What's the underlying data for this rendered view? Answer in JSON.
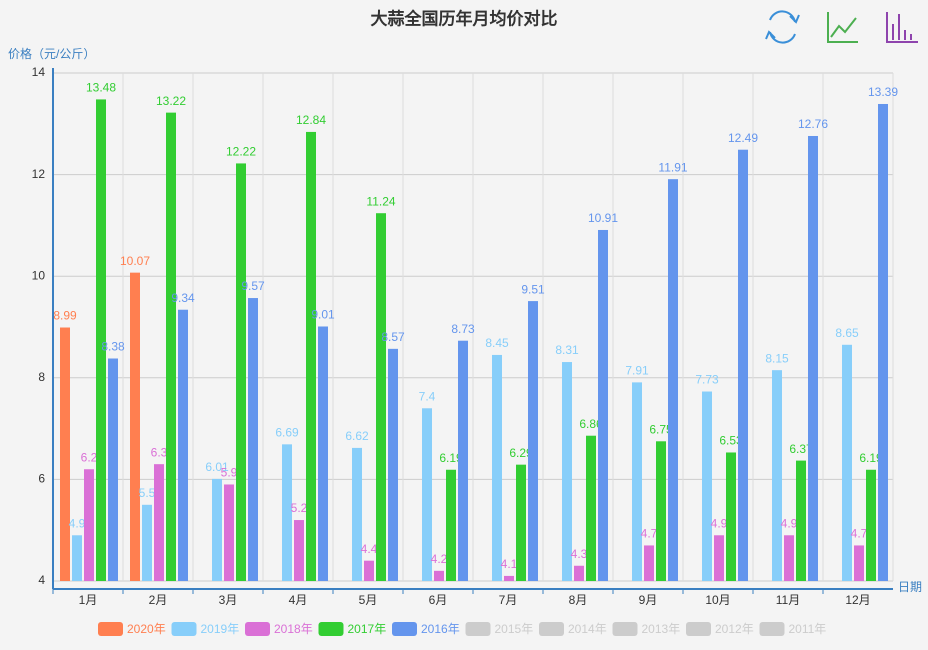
{
  "chart_data": {
    "type": "bar",
    "title": "大蒜全国历年月均价对比",
    "y_label": "价格（元/公斤）",
    "x_label": "日期",
    "categories": [
      "1月",
      "2月",
      "3月",
      "4月",
      "5月",
      "6月",
      "7月",
      "8月",
      "9月",
      "10月",
      "11月",
      "12月"
    ],
    "ylim": [
      4,
      14
    ],
    "yticks": [
      4,
      6,
      8,
      10,
      12,
      14
    ],
    "grid": true,
    "legend": "bottom",
    "series": [
      {
        "name": "2020年",
        "color": "#ff7f50",
        "values": [
          8.99,
          10.07,
          null,
          null,
          null,
          null,
          null,
          null,
          null,
          null,
          null,
          null
        ]
      },
      {
        "name": "2019年",
        "color": "#87cefa",
        "values": [
          4.9,
          5.5,
          6.01,
          6.69,
          6.62,
          7.4,
          8.45,
          8.31,
          7.91,
          7.73,
          8.15,
          8.65
        ]
      },
      {
        "name": "2018年",
        "color": "#da70d6",
        "values": [
          6.2,
          6.3,
          5.9,
          5.2,
          4.4,
          4.2,
          4.1,
          4.3,
          4.7,
          4.9,
          4.9,
          4.7
        ]
      },
      {
        "name": "2017年",
        "color": "#32cd32",
        "values": [
          13.48,
          13.22,
          12.22,
          12.84,
          11.24,
          6.19,
          6.29,
          6.86,
          6.75,
          6.53,
          6.37,
          6.19
        ]
      },
      {
        "name": "2016年",
        "color": "#6495ed",
        "values": [
          8.38,
          9.34,
          9.57,
          9.01,
          8.57,
          8.73,
          9.51,
          10.91,
          11.91,
          12.49,
          12.76,
          13.39
        ]
      },
      {
        "name": "2015年",
        "color": "#cccccc",
        "visible": false,
        "values": [
          null,
          null,
          null,
          null,
          null,
          null,
          null,
          null,
          null,
          null,
          null,
          null
        ]
      },
      {
        "name": "2014年",
        "color": "#cccccc",
        "visible": false,
        "values": [
          null,
          null,
          null,
          null,
          null,
          null,
          null,
          null,
          null,
          null,
          null,
          null
        ]
      },
      {
        "name": "2013年",
        "color": "#cccccc",
        "visible": false,
        "values": [
          null,
          null,
          null,
          null,
          null,
          null,
          null,
          null,
          null,
          null,
          null,
          null
        ]
      },
      {
        "name": "2012年",
        "color": "#cccccc",
        "visible": false,
        "values": [
          null,
          null,
          null,
          null,
          null,
          null,
          null,
          null,
          null,
          null,
          null,
          null
        ]
      },
      {
        "name": "2011年",
        "color": "#cccccc",
        "visible": false,
        "values": [
          null,
          null,
          null,
          null,
          null,
          null,
          null,
          null,
          null,
          null,
          null,
          null
        ]
      }
    ]
  }
}
